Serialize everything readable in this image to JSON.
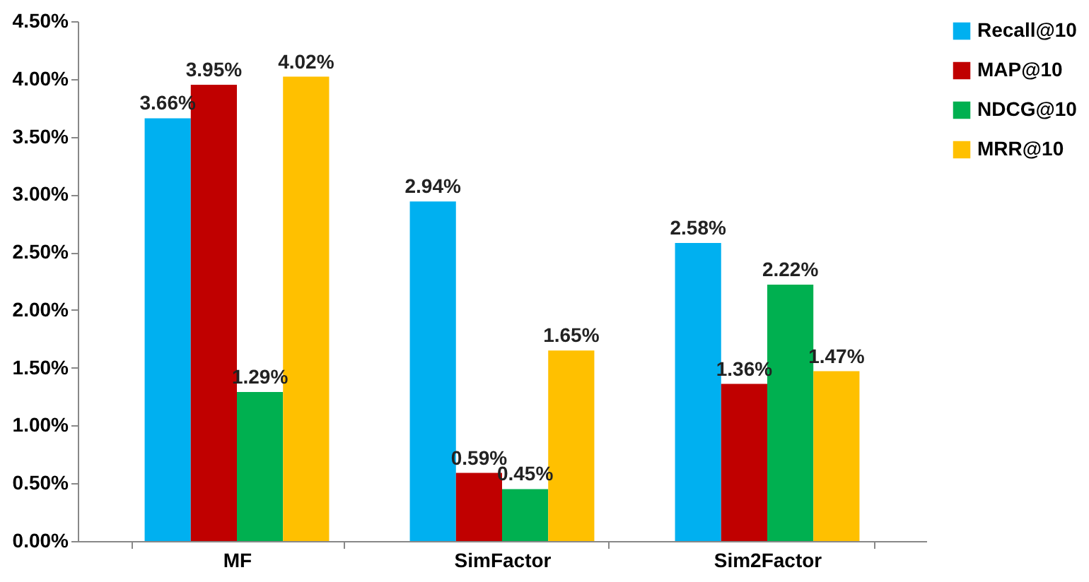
{
  "chart_data": {
    "type": "bar",
    "categories": [
      "MF",
      "SimFactor",
      "Sim2Factor"
    ],
    "series": [
      {
        "name": "Recall@10",
        "color": "#00b0f0",
        "values": [
          3.66,
          2.94,
          2.58
        ],
        "value_labels": [
          "3.66%",
          "2.94%",
          "2.58%"
        ]
      },
      {
        "name": "MAP@10",
        "color": "#c00000",
        "values": [
          3.95,
          0.59,
          1.36
        ],
        "value_labels": [
          "3.95%",
          "0.59%",
          "1.36%"
        ]
      },
      {
        "name": "NDCG@10",
        "color": "#00b050",
        "values": [
          1.29,
          0.45,
          2.22
        ],
        "value_labels": [
          "1.29%",
          "0.45%",
          "2.22%"
        ]
      },
      {
        "name": "MRR@10",
        "color": "#ffc000",
        "values": [
          4.02,
          1.65,
          1.47
        ],
        "value_labels": [
          "4.02%",
          "1.65%",
          "1.47%"
        ]
      }
    ],
    "ylim": [
      0,
      4.5
    ],
    "yticks": [
      {
        "value": 0,
        "label": "0.00%"
      },
      {
        "value": 0.5,
        "label": "0.50%"
      },
      {
        "value": 1,
        "label": "1.00%"
      },
      {
        "value": 1.5,
        "label": "1.50%"
      },
      {
        "value": 2,
        "label": "2.00%"
      },
      {
        "value": 2.5,
        "label": "2.50%"
      },
      {
        "value": 3,
        "label": "3.00%"
      },
      {
        "value": 3.5,
        "label": "3.50%"
      },
      {
        "value": 4,
        "label": "4.00%"
      },
      {
        "value": 4.5,
        "label": "4.50%"
      }
    ],
    "grid": false,
    "legend": "right"
  }
}
